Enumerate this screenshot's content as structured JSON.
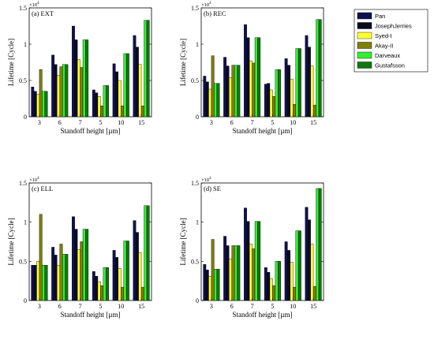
{
  "colors": [
    "#101050",
    "#0b0b20",
    "#ffff33",
    "#7f7f00",
    "#33ee33",
    "#117711"
  ],
  "legend": [
    "Pan",
    "JosephJerries",
    "Syed-I",
    "Akay-II",
    "Darveaux",
    "Gustafsson"
  ],
  "chart_data": [
    {
      "type": "bar",
      "title": "(a) EXT",
      "xlabel": "Standoff height [µm]",
      "ylabel": "Lifetime [Cycle]",
      "exponent_base": "×10",
      "exponent_power": "4",
      "categories": [
        "3",
        "6",
        "7",
        "5",
        "10",
        "15"
      ],
      "ylim": [
        0,
        1.5
      ],
      "yticks": [
        "0",
        "0.5",
        "1",
        "1.5"
      ],
      "series": [
        {
          "name": "Pan",
          "values": [
            0.41,
            0.85,
            1.25,
            0.37,
            0.73,
            1.12
          ]
        },
        {
          "name": "JosephJerries",
          "values": [
            0.35,
            0.72,
            1.06,
            0.33,
            0.62,
            0.96
          ]
        },
        {
          "name": "Syed-I",
          "values": [
            0.31,
            0.57,
            0.79,
            0.28,
            0.5,
            0.72
          ]
        },
        {
          "name": "Akay-II",
          "values": [
            0.65,
            0.69,
            0.68,
            0.15,
            0.15,
            0.15
          ]
        },
        {
          "name": "Darveaux",
          "values": [
            0.35,
            0.72,
            1.06,
            0.43,
            0.87,
            1.33
          ]
        },
        {
          "name": "Gustafsson",
          "values": [
            0.35,
            0.72,
            1.06,
            0.43,
            0.87,
            1.33
          ]
        }
      ]
    },
    {
      "type": "bar",
      "title": "(b) REC",
      "xlabel": "Standoff height [µm]",
      "ylabel": "Lifetime [Cycle]",
      "exponent_base": "×10",
      "exponent_power": "4",
      "categories": [
        "3",
        "6",
        "7",
        "5",
        "10",
        "15"
      ],
      "ylim": [
        0,
        1.5
      ],
      "yticks": [
        "0",
        "0.5",
        "1",
        "1.5"
      ],
      "series": [
        {
          "name": "Pan",
          "values": [
            0.56,
            0.82,
            1.27,
            0.45,
            0.8,
            1.12
          ]
        },
        {
          "name": "JosephJerries",
          "values": [
            0.48,
            0.7,
            1.09,
            0.46,
            0.71,
            0.96
          ]
        },
        {
          "name": "Syed-I",
          "values": [
            0.38,
            0.54,
            0.77,
            0.37,
            0.52,
            0.7
          ]
        },
        {
          "name": "Akay-II",
          "values": [
            0.84,
            0.71,
            0.74,
            0.28,
            0.17,
            0.16
          ]
        },
        {
          "name": "Darveaux",
          "values": [
            0.46,
            0.71,
            1.09,
            0.65,
            0.94,
            1.34
          ]
        },
        {
          "name": "Gustafsson",
          "values": [
            0.46,
            0.71,
            1.09,
            0.65,
            0.94,
            1.34
          ]
        }
      ]
    },
    {
      "type": "bar",
      "title": "(c) ELL",
      "xlabel": "Standoff height [µm]",
      "ylabel": "Lifetime [Cycle]",
      "exponent_base": "×10",
      "exponent_power": "4",
      "categories": [
        "3",
        "6",
        "7",
        "5",
        "10",
        "15"
      ],
      "ylim": [
        0,
        1.5
      ],
      "yticks": [
        "0",
        "0.5",
        "1",
        "1.5"
      ],
      "series": [
        {
          "name": "Pan",
          "values": [
            0.45,
            0.68,
            1.07,
            0.37,
            0.64,
            1.02
          ]
        },
        {
          "name": "JosephJerries",
          "values": [
            0.45,
            0.58,
            0.91,
            0.31,
            0.55,
            0.87
          ]
        },
        {
          "name": "Syed-I",
          "values": [
            0.5,
            0.45,
            0.65,
            0.24,
            0.41,
            0.61
          ]
        },
        {
          "name": "Akay-II",
          "values": [
            1.1,
            0.72,
            0.75,
            0.19,
            0.17,
            0.17
          ]
        },
        {
          "name": "Darveaux",
          "values": [
            0.45,
            0.59,
            0.91,
            0.42,
            0.76,
            1.21
          ]
        },
        {
          "name": "Gustafsson",
          "values": [
            0.45,
            0.59,
            0.91,
            0.42,
            0.76,
            1.21
          ]
        }
      ]
    },
    {
      "type": "bar",
      "title": "(d) SE",
      "xlabel": "Standoff height [µm]",
      "ylabel": "Lifetime [Cycle]",
      "exponent_base": "×10",
      "exponent_power": "4",
      "categories": [
        "3",
        "6",
        "7",
        "5",
        "10",
        "15"
      ],
      "ylim": [
        0,
        1.5
      ],
      "yticks": [
        "0",
        "0.5",
        "1",
        "1.5"
      ],
      "series": [
        {
          "name": "Pan",
          "values": [
            0.46,
            0.82,
            1.18,
            0.42,
            0.75,
            1.19
          ]
        },
        {
          "name": "JosephJerries",
          "values": [
            0.39,
            0.7,
            1.01,
            0.36,
            0.64,
            1.03
          ]
        },
        {
          "name": "Syed-I",
          "values": [
            0.31,
            0.53,
            0.72,
            0.28,
            0.49,
            0.72
          ]
        },
        {
          "name": "Akay-II",
          "values": [
            0.78,
            0.7,
            0.66,
            0.19,
            0.17,
            0.18
          ]
        },
        {
          "name": "Darveaux",
          "values": [
            0.4,
            0.7,
            1.01,
            0.5,
            0.89,
            1.43
          ]
        },
        {
          "name": "Gustafsson",
          "values": [
            0.4,
            0.7,
            1.01,
            0.5,
            0.89,
            1.43
          ]
        }
      ]
    }
  ]
}
